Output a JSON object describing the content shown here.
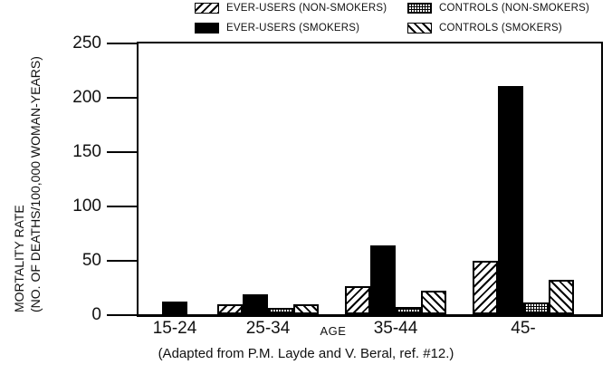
{
  "legend": {
    "items": [
      {
        "label": "EVER-USERS (NON-SMOKERS)",
        "pattern": "diagonal-forward"
      },
      {
        "label": "EVER-USERS (SMOKERS)",
        "pattern": "solid"
      },
      {
        "label": "CONTROLS (NON-SMOKERS)",
        "pattern": "grid"
      },
      {
        "label": "CONTROLS (SMOKERS)",
        "pattern": "diagonal-backward"
      }
    ]
  },
  "chart_data": {
    "type": "bar",
    "categories": [
      "15-24",
      "25-34",
      "35-44",
      "45-"
    ],
    "series": [
      {
        "name": "EVER-USERS (NON-SMOKERS)",
        "pattern": "diagonal-forward",
        "values": [
          0,
          9,
          26,
          49
        ]
      },
      {
        "name": "EVER-USERS (SMOKERS)",
        "pattern": "solid",
        "values": [
          12,
          18,
          63,
          210
        ]
      },
      {
        "name": "CONTROLS (NON-SMOKERS)",
        "pattern": "grid",
        "values": [
          0,
          6,
          7,
          11
        ]
      },
      {
        "name": "CONTROLS (SMOKERS)",
        "pattern": "diagonal-backward",
        "values": [
          0,
          9,
          22,
          32
        ]
      }
    ],
    "ylabel_line1": "MORTALITY RATE",
    "ylabel_line2": "(NO. OF DEATHS/100,000 WOMAN-YEARS)",
    "xlabel": "AGE",
    "ylim": [
      0,
      250
    ],
    "yticks": [
      0,
      50,
      100,
      150,
      200,
      250
    ],
    "grid": false,
    "legend_position": "top",
    "bar_color": "#000000",
    "note_zero_bars": "bars with value 0 are not drawn"
  },
  "caption": "(Adapted from P.M. Layde and V. Beral, ref. #12.)"
}
